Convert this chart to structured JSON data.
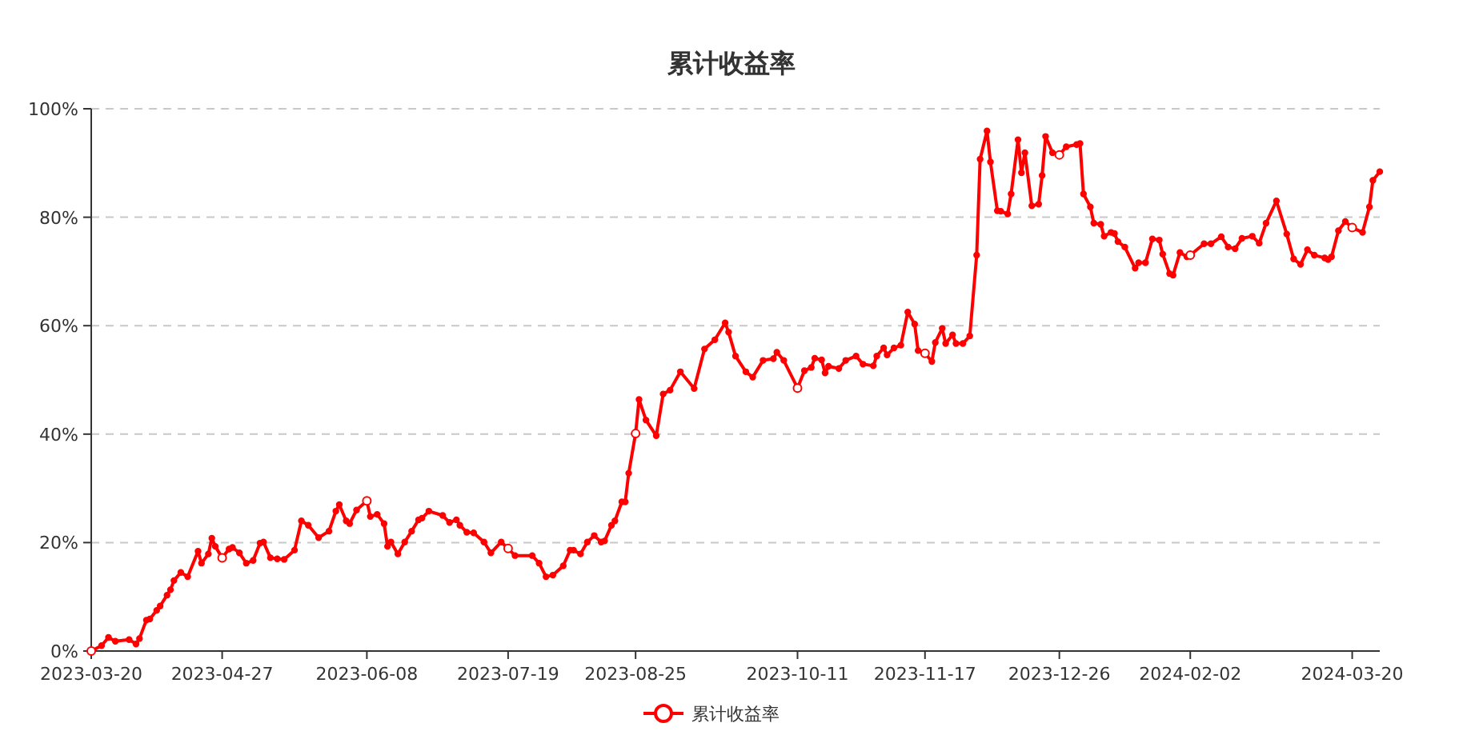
{
  "chart_data": {
    "type": "line",
    "title": "累计收益率",
    "x": [
      "2023-03-20",
      "2023-03-23",
      "2023-03-25",
      "2023-03-27",
      "2023-03-31",
      "2023-04-02",
      "2023-04-03",
      "2023-04-05",
      "2023-04-06",
      "2023-04-08",
      "2023-04-09",
      "2023-04-11",
      "2023-04-12",
      "2023-04-13",
      "2023-04-15",
      "2023-04-17",
      "2023-04-20",
      "2023-04-21",
      "2023-04-23",
      "2023-04-24",
      "2023-04-25",
      "2023-04-27",
      "2023-04-29",
      "2023-04-30",
      "2023-05-02",
      "2023-05-04",
      "2023-05-06",
      "2023-05-08",
      "2023-05-09",
      "2023-05-11",
      "2023-05-13",
      "2023-05-15",
      "2023-05-18",
      "2023-05-20",
      "2023-05-22",
      "2023-05-25",
      "2023-05-28",
      "2023-05-30",
      "2023-05-31",
      "2023-06-02",
      "2023-06-03",
      "2023-06-05",
      "2023-06-08",
      "2023-06-09",
      "2023-06-11",
      "2023-06-13",
      "2023-06-14",
      "2023-06-15",
      "2023-06-17",
      "2023-06-19",
      "2023-06-21",
      "2023-06-23",
      "2023-06-24",
      "2023-06-26",
      "2023-06-30",
      "2023-07-02",
      "2023-07-04",
      "2023-07-05",
      "2023-07-07",
      "2023-07-09",
      "2023-07-12",
      "2023-07-14",
      "2023-07-17",
      "2023-07-19",
      "2023-07-21",
      "2023-07-26",
      "2023-07-28",
      "2023-07-30",
      "2023-08-01",
      "2023-08-04",
      "2023-08-06",
      "2023-08-07",
      "2023-08-09",
      "2023-08-11",
      "2023-08-13",
      "2023-08-15",
      "2023-08-16",
      "2023-08-18",
      "2023-08-19",
      "2023-08-21",
      "2023-08-22",
      "2023-08-23",
      "2023-08-25",
      "2023-08-26",
      "2023-08-28",
      "2023-08-31",
      "2023-09-02",
      "2023-09-04",
      "2023-09-07",
      "2023-09-11",
      "2023-09-14",
      "2023-09-17",
      "2023-09-20",
      "2023-09-21",
      "2023-09-23",
      "2023-09-26",
      "2023-09-28",
      "2023-10-01",
      "2023-10-04",
      "2023-10-05",
      "2023-10-07",
      "2023-10-11",
      "2023-10-13",
      "2023-10-15",
      "2023-10-16",
      "2023-10-18",
      "2023-10-19",
      "2023-10-20",
      "2023-10-23",
      "2023-10-25",
      "2023-10-28",
      "2023-10-30",
      "2023-11-02",
      "2023-11-03",
      "2023-11-05",
      "2023-11-06",
      "2023-11-08",
      "2023-11-10",
      "2023-11-12",
      "2023-11-14",
      "2023-11-15",
      "2023-11-17",
      "2023-11-19",
      "2023-11-20",
      "2023-11-22",
      "2023-11-23",
      "2023-11-25",
      "2023-11-26",
      "2023-11-28",
      "2023-11-30",
      "2023-12-02",
      "2023-12-03",
      "2023-12-05",
      "2023-12-06",
      "2023-12-08",
      "2023-12-09",
      "2023-12-11",
      "2023-12-12",
      "2023-12-14",
      "2023-12-15",
      "2023-12-16",
      "2023-12-18",
      "2023-12-20",
      "2023-12-21",
      "2023-12-22",
      "2023-12-24",
      "2023-12-26",
      "2023-12-28",
      "2023-12-31",
      "2024-01-01",
      "2024-01-02",
      "2024-01-04",
      "2024-01-05",
      "2024-01-07",
      "2024-01-08",
      "2024-01-10",
      "2024-01-11",
      "2024-01-12",
      "2024-01-14",
      "2024-01-17",
      "2024-01-18",
      "2024-01-20",
      "2024-01-22",
      "2024-01-24",
      "2024-01-25",
      "2024-01-27",
      "2024-01-28",
      "2024-01-30",
      "2024-02-01",
      "2024-02-02",
      "2024-02-06",
      "2024-02-08",
      "2024-02-11",
      "2024-02-13",
      "2024-02-15",
      "2024-02-17",
      "2024-02-20",
      "2024-02-22",
      "2024-02-24",
      "2024-02-27",
      "2024-03-01",
      "2024-03-03",
      "2024-03-05",
      "2024-03-07",
      "2024-03-09",
      "2024-03-12",
      "2024-03-13",
      "2024-03-14",
      "2024-03-16",
      "2024-03-18",
      "2024-03-20",
      "2024-03-23",
      "2024-03-25",
      "2024-03-26",
      "2024-03-28"
    ],
    "series": [
      {
        "name": "累计收益率",
        "color": "#ff0000",
        "values": [
          0,
          1.0,
          2.5,
          1.8,
          2.1,
          1.3,
          2.3,
          5.7,
          5.9,
          7.5,
          8.3,
          10.3,
          11.3,
          13,
          14.5,
          13.7,
          18.4,
          16.2,
          17.9,
          20.8,
          19.3,
          17.2,
          18.8,
          19.1,
          18.1,
          16.2,
          16.7,
          19.9,
          20.1,
          17.2,
          17,
          16.9,
          18.6,
          24,
          23.2,
          20.9,
          22.1,
          25.8,
          27,
          24,
          23.5,
          26,
          27.7,
          24.8,
          25.2,
          23.5,
          19.3,
          20.1,
          17.9,
          20.1,
          22.1,
          24.2,
          24.5,
          25.8,
          25,
          23.7,
          24.2,
          23.2,
          21.9,
          21.8,
          20.1,
          18.1,
          20.1,
          18.9,
          17.6,
          17.6,
          16.2,
          13.7,
          14,
          15.7,
          18.6,
          18.6,
          17.9,
          20.1,
          21.3,
          20.1,
          20.3,
          23.2,
          24,
          27.5,
          27.5,
          32.8,
          40.1,
          46.4,
          42.6,
          39.7,
          47.4,
          48.1,
          51.5,
          48.4,
          55.7,
          57.4,
          60.5,
          58.8,
          54.4,
          51.5,
          50.5,
          53.6,
          53.9,
          55.1,
          53.6,
          48.5,
          51.7,
          52.3,
          54,
          53.7,
          51.3,
          52.5,
          52.1,
          53.6,
          54.4,
          52.9,
          52.6,
          54.4,
          55.9,
          54.6,
          55.9,
          56.4,
          62.5,
          60.3,
          55.4,
          54.9,
          53.4,
          56.9,
          59.5,
          56.7,
          58.3,
          56.7,
          56.7,
          58.1,
          73,
          90.7,
          95.9,
          90.2,
          81.2,
          81.1,
          80.6,
          84.3,
          94.3,
          88.2,
          91.9,
          82.1,
          82.4,
          87.7,
          94.9,
          91.9,
          91.5,
          93,
          93.4,
          93.6,
          84.3,
          81.9,
          78.9,
          78.7,
          76.5,
          77.2,
          77,
          75.5,
          74.5,
          70.6,
          71.6,
          71.6,
          76,
          75.8,
          73.2,
          69.6,
          69.3,
          73.5,
          72.7,
          73,
          75.1,
          75.1,
          76.4,
          74.5,
          74.2,
          76.1,
          76.5,
          75.2,
          78.9,
          83,
          76.9,
          72.3,
          71.3,
          74,
          73,
          72.5,
          72.2,
          72.7,
          77.5,
          79.2,
          78.1,
          77.2,
          81.9,
          86.8,
          88.4
        ]
      }
    ],
    "xlim": [
      "2023-03-20",
      "2024-03-28"
    ],
    "xticks": [
      "2023-03-20",
      "2023-04-27",
      "2023-06-08",
      "2023-07-19",
      "2023-08-25",
      "2023-10-11",
      "2023-11-17",
      "2023-12-26",
      "2024-02-02",
      "2024-03-20"
    ],
    "ylim": [
      0,
      100
    ],
    "yticks": [
      {
        "value": 0,
        "label": "0%"
      },
      {
        "value": 20,
        "label": "20%"
      },
      {
        "value": 40,
        "label": "40%"
      },
      {
        "value": 60,
        "label": "60%"
      },
      {
        "value": 80,
        "label": "80%"
      },
      {
        "value": 100,
        "label": "100%"
      }
    ],
    "grid": "y",
    "legend": "bottom",
    "marker": "circle",
    "line_style": "solid"
  }
}
